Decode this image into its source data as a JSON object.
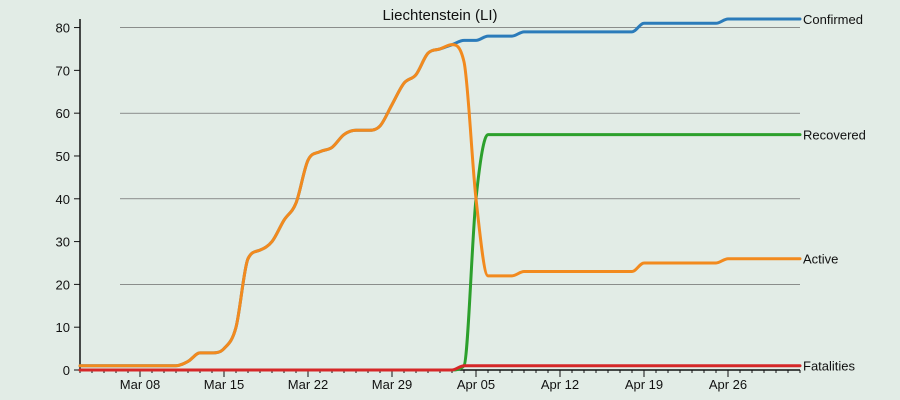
{
  "chart_data": {
    "type": "line",
    "title": "Liechtenstein (LI)",
    "xlabel": "",
    "ylabel": "",
    "x_start": "Mar 03",
    "x_end": "May 02",
    "xlim": [
      "Mar 03",
      "May 02"
    ],
    "ylim": [
      0,
      82
    ],
    "y_ticks": [
      0,
      10,
      20,
      30,
      40,
      50,
      60,
      70,
      80
    ],
    "x_ticks": [
      {
        "date": "Mar 08",
        "label": "Mar 08"
      },
      {
        "date": "Mar 15",
        "label": "Mar 15"
      },
      {
        "date": "Mar 22",
        "label": "Mar 22"
      },
      {
        "date": "Mar 29",
        "label": "Mar 29"
      },
      {
        "date": "Apr 05",
        "label": "Apr 05"
      },
      {
        "date": "Apr 12",
        "label": "Apr 12"
      },
      {
        "date": "Apr 19",
        "label": "Apr 19"
      },
      {
        "date": "Apr 26",
        "label": "Apr 26"
      }
    ],
    "grid": true,
    "legend": "right-end labels",
    "series": [
      {
        "name": "Confirmed",
        "color": "#2b7bba",
        "points": [
          [
            "Mar 03",
            1
          ],
          [
            "Mar 11",
            1
          ],
          [
            "Mar 12",
            2
          ],
          [
            "Mar 13",
            4
          ],
          [
            "Mar 14",
            4
          ],
          [
            "Mar 15",
            5
          ],
          [
            "Mar 16",
            10
          ],
          [
            "Mar 17",
            26
          ],
          [
            "Mar 18",
            28
          ],
          [
            "Mar 19",
            30
          ],
          [
            "Mar 20",
            35
          ],
          [
            "Mar 21",
            39
          ],
          [
            "Mar 22",
            49
          ],
          [
            "Mar 23",
            51
          ],
          [
            "Mar 24",
            52
          ],
          [
            "Mar 25",
            55
          ],
          [
            "Mar 26",
            56
          ],
          [
            "Mar 27",
            56
          ],
          [
            "Mar 28",
            57
          ],
          [
            "Mar 29",
            62
          ],
          [
            "Mar 30",
            67
          ],
          [
            "Mar 31",
            69
          ],
          [
            "Apr 01",
            74
          ],
          [
            "Apr 02",
            75
          ],
          [
            "Apr 03",
            76
          ],
          [
            "Apr 04",
            77
          ],
          [
            "Apr 05",
            77
          ],
          [
            "Apr 06",
            78
          ],
          [
            "Apr 07",
            78
          ],
          [
            "Apr 08",
            78
          ],
          [
            "Apr 09",
            79
          ],
          [
            "Apr 18",
            79
          ],
          [
            "Apr 19",
            81
          ],
          [
            "Apr 25",
            81
          ],
          [
            "Apr 26",
            82
          ],
          [
            "May 02",
            82
          ]
        ]
      },
      {
        "name": "Recovered",
        "color": "#2ca02c",
        "points": [
          [
            "Mar 03",
            0
          ],
          [
            "Apr 02",
            0
          ],
          [
            "Apr 03",
            0
          ],
          [
            "Apr 04",
            1
          ],
          [
            "Apr 05",
            40
          ],
          [
            "Apr 06",
            55
          ],
          [
            "May 02",
            55
          ]
        ]
      },
      {
        "name": "Active",
        "color": "#f28a1e",
        "points": [
          [
            "Mar 03",
            1
          ],
          [
            "Mar 11",
            1
          ],
          [
            "Mar 12",
            2
          ],
          [
            "Mar 13",
            4
          ],
          [
            "Mar 14",
            4
          ],
          [
            "Mar 15",
            5
          ],
          [
            "Mar 16",
            10
          ],
          [
            "Mar 17",
            26
          ],
          [
            "Mar 18",
            28
          ],
          [
            "Mar 19",
            30
          ],
          [
            "Mar 20",
            35
          ],
          [
            "Mar 21",
            39
          ],
          [
            "Mar 22",
            49
          ],
          [
            "Mar 23",
            51
          ],
          [
            "Mar 24",
            52
          ],
          [
            "Mar 25",
            55
          ],
          [
            "Mar 26",
            56
          ],
          [
            "Mar 27",
            56
          ],
          [
            "Mar 28",
            57
          ],
          [
            "Mar 29",
            62
          ],
          [
            "Mar 30",
            67
          ],
          [
            "Mar 31",
            69
          ],
          [
            "Apr 01",
            74
          ],
          [
            "Apr 02",
            75
          ],
          [
            "Apr 03",
            76
          ],
          [
            "Apr 04",
            72
          ],
          [
            "Apr 05",
            40
          ],
          [
            "Apr 06",
            22
          ],
          [
            "Apr 07",
            22
          ],
          [
            "Apr 08",
            22
          ],
          [
            "Apr 09",
            23
          ],
          [
            "Apr 18",
            23
          ],
          [
            "Apr 19",
            25
          ],
          [
            "Apr 25",
            25
          ],
          [
            "Apr 26",
            26
          ],
          [
            "May 02",
            26
          ]
        ]
      },
      {
        "name": "Fatalities",
        "color": "#d62728",
        "points": [
          [
            "Mar 03",
            0
          ],
          [
            "Apr 03",
            0
          ],
          [
            "Apr 04",
            1
          ],
          [
            "May 02",
            1
          ]
        ]
      }
    ]
  }
}
